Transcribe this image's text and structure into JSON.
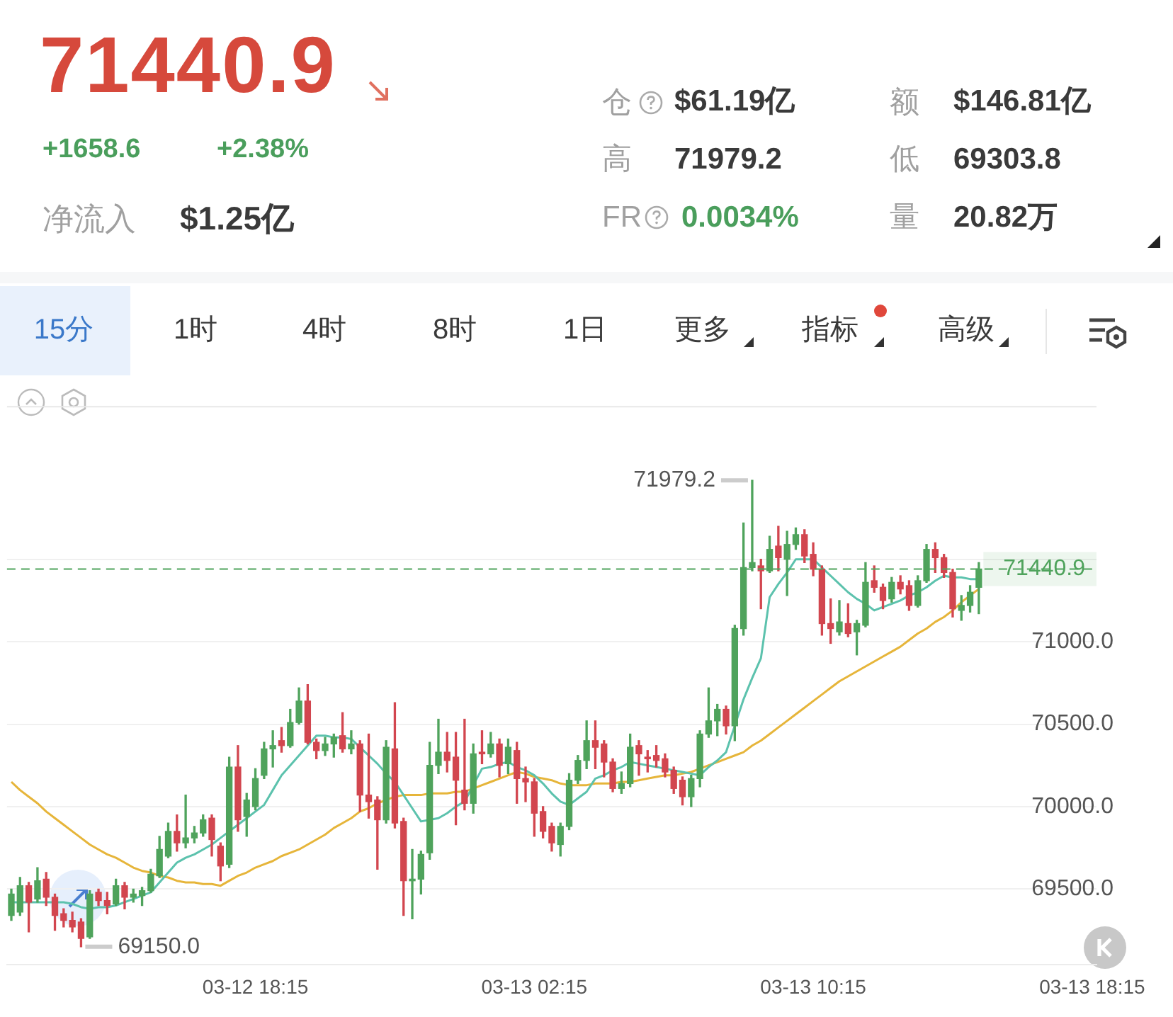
{
  "chart_data": {
    "type": "candlestick",
    "title": "71440.9",
    "categories": [
      null,
      null,
      null,
      null,
      null,
      null,
      null,
      null,
      null,
      null,
      null,
      null,
      null,
      null,
      null,
      null,
      null,
      null,
      null,
      null,
      null,
      null,
      null,
      null,
      null,
      null,
      null,
      null,
      "03-12 18:15",
      null,
      null,
      null,
      null,
      null,
      null,
      null,
      null,
      null,
      null,
      null,
      null,
      null,
      null,
      null,
      null,
      null,
      null,
      null,
      null,
      null,
      null,
      null,
      null,
      null,
      null,
      null,
      null,
      null,
      null,
      null,
      "03-13 02:15",
      null,
      null,
      null,
      null,
      null,
      null,
      null,
      null,
      null,
      null,
      null,
      null,
      null,
      null,
      null,
      null,
      null,
      null,
      null,
      null,
      null,
      null,
      null,
      null,
      null,
      null,
      null,
      null,
      null,
      null,
      null,
      "03-13 10:15",
      null,
      null,
      null,
      null,
      null,
      null,
      null,
      null,
      null,
      null,
      null,
      null,
      null,
      null,
      null,
      null,
      null,
      null,
      null,
      null,
      null,
      null,
      null,
      null,
      null,
      null,
      null,
      null,
      null,
      null,
      null,
      "03-13 18:15"
    ],
    "ohlc": [
      [
        69340,
        69500,
        69310,
        69470
      ],
      [
        69360,
        69570,
        69340,
        69520
      ],
      [
        69520,
        69540,
        69240,
        69420
      ],
      [
        69440,
        69630,
        69420,
        69550
      ],
      [
        69560,
        69600,
        69400,
        69450
      ],
      [
        69450,
        69470,
        69250,
        69340
      ],
      [
        69350,
        69380,
        69270,
        69310
      ],
      [
        69310,
        69360,
        69240,
        69270
      ],
      [
        69300,
        69320,
        69150,
        69200
      ],
      [
        69210,
        69490,
        69200,
        69470
      ],
      [
        69480,
        69500,
        69400,
        69430
      ],
      [
        69430,
        69480,
        69350,
        69400
      ],
      [
        69410,
        69560,
        69400,
        69520
      ],
      [
        69520,
        69540,
        69380,
        69450
      ],
      [
        69450,
        69500,
        69420,
        69470
      ],
      [
        69460,
        69510,
        69400,
        69490
      ],
      [
        69490,
        69620,
        69480,
        69590
      ],
      [
        69580,
        69820,
        69570,
        69740
      ],
      [
        69700,
        69900,
        69690,
        69850
      ],
      [
        69850,
        69950,
        69730,
        69780
      ],
      [
        69780,
        70070,
        69750,
        69810
      ],
      [
        69810,
        69880,
        69780,
        69840
      ],
      [
        69840,
        69950,
        69820,
        69920
      ],
      [
        69930,
        69950,
        69700,
        69800
      ],
      [
        69760,
        69780,
        69550,
        69640
      ],
      [
        69650,
        70300,
        69630,
        70240
      ],
      [
        70240,
        70370,
        69850,
        69920
      ],
      [
        69940,
        70080,
        69820,
        70040
      ],
      [
        70000,
        70230,
        69980,
        70170
      ],
      [
        70190,
        70390,
        70170,
        70350
      ],
      [
        70350,
        70460,
        70240,
        70370
      ],
      [
        70400,
        70480,
        70330,
        70370
      ],
      [
        70370,
        70590,
        70360,
        70510
      ],
      [
        70510,
        70720,
        70500,
        70640
      ],
      [
        70640,
        70740,
        70380,
        70390
      ],
      [
        70390,
        70410,
        70290,
        70340
      ],
      [
        70340,
        70420,
        70310,
        70380
      ],
      [
        70380,
        70440,
        70300,
        70420
      ],
      [
        70430,
        70570,
        70330,
        70350
      ],
      [
        70350,
        70460,
        70320,
        70380
      ],
      [
        70380,
        70400,
        69970,
        70070
      ],
      [
        70070,
        70440,
        69930,
        70030
      ],
      [
        70040,
        70060,
        69620,
        69920
      ],
      [
        69920,
        70400,
        69900,
        70360
      ],
      [
        70350,
        70630,
        69870,
        69900
      ],
      [
        69910,
        69930,
        69340,
        69550
      ],
      [
        69550,
        69740,
        69320,
        69560
      ],
      [
        69560,
        69730,
        69470,
        69710
      ],
      [
        69720,
        70390,
        69680,
        70250
      ],
      [
        70250,
        70530,
        70200,
        70330
      ],
      [
        70330,
        70450,
        70210,
        70280
      ],
      [
        70300,
        70450,
        69890,
        70160
      ],
      [
        70100,
        70530,
        69980,
        70020
      ],
      [
        70020,
        70380,
        69960,
        70320
      ],
      [
        70330,
        70460,
        70260,
        70320
      ],
      [
        70320,
        70450,
        70300,
        70380
      ],
      [
        70380,
        70410,
        70180,
        70250
      ],
      [
        70260,
        70410,
        70200,
        70360
      ],
      [
        70340,
        70390,
        70020,
        70170
      ],
      [
        70170,
        70240,
        70030,
        70150
      ],
      [
        70150,
        70170,
        69820,
        69960
      ],
      [
        69970,
        70000,
        69810,
        69850
      ],
      [
        69880,
        69900,
        69730,
        69780
      ],
      [
        69770,
        69900,
        69700,
        69880
      ],
      [
        69880,
        70200,
        69860,
        70160
      ],
      [
        70160,
        70310,
        70140,
        70280
      ],
      [
        70280,
        70520,
        70230,
        70400
      ],
      [
        70400,
        70520,
        70230,
        70360
      ],
      [
        70380,
        70400,
        70180,
        70270
      ],
      [
        70270,
        70290,
        70090,
        70110
      ],
      [
        70110,
        70210,
        70080,
        70140
      ],
      [
        70140,
        70440,
        70120,
        70360
      ],
      [
        70370,
        70400,
        70190,
        70320
      ],
      [
        70300,
        70340,
        70210,
        70290
      ],
      [
        70310,
        70370,
        70240,
        70280
      ],
      [
        70290,
        70320,
        70180,
        70210
      ],
      [
        70220,
        70240,
        70080,
        70110
      ],
      [
        70160,
        70180,
        70010,
        70060
      ],
      [
        70060,
        70190,
        70000,
        70170
      ],
      [
        70170,
        70460,
        70120,
        70440
      ],
      [
        70440,
        70720,
        70420,
        70520
      ],
      [
        70520,
        70620,
        70430,
        70590
      ],
      [
        70590,
        70610,
        70440,
        70490
      ],
      [
        70490,
        71100,
        70400,
        71080
      ],
      [
        71080,
        71720,
        71040,
        71450
      ],
      [
        71450,
        71979.2,
        71430,
        71480
      ],
      [
        71460,
        71500,
        71200,
        71430
      ],
      [
        71430,
        71640,
        71420,
        71560
      ],
      [
        71580,
        71700,
        71430,
        71510
      ],
      [
        71500,
        71670,
        71280,
        71590
      ],
      [
        71590,
        71690,
        71560,
        71650
      ],
      [
        71650,
        71680,
        71480,
        71520
      ],
      [
        71530,
        71600,
        71400,
        71440
      ],
      [
        71440,
        71460,
        71040,
        71110
      ],
      [
        71110,
        71260,
        70990,
        71080
      ],
      [
        71060,
        71250,
        71040,
        71120
      ],
      [
        71110,
        71230,
        71030,
        71050
      ],
      [
        71060,
        71130,
        70920,
        71110
      ],
      [
        71100,
        71480,
        71090,
        71360
      ],
      [
        71370,
        71460,
        71300,
        71330
      ],
      [
        71330,
        71350,
        71200,
        71250
      ],
      [
        71260,
        71390,
        71240,
        71360
      ],
      [
        71360,
        71400,
        71290,
        71320
      ],
      [
        71340,
        71370,
        71190,
        71220
      ],
      [
        71220,
        71400,
        71210,
        71370
      ],
      [
        71370,
        71590,
        71360,
        71560
      ],
      [
        71560,
        71600,
        71420,
        71510
      ],
      [
        71510,
        71530,
        71390,
        71420
      ],
      [
        71420,
        71440,
        71150,
        71200
      ],
      [
        71190,
        71280,
        71130,
        71220
      ],
      [
        71220,
        71340,
        71180,
        71300
      ],
      [
        71330,
        71480,
        71170,
        71440.9
      ],
      null,
      null,
      null,
      null,
      null,
      null,
      null,
      null,
      null,
      null,
      null,
      null,
      null
    ],
    "series": [
      {
        "type": "line",
        "color": "#5cc2ad",
        "values": [
          69420,
          69420,
          69420,
          69420,
          69420,
          69420,
          69420,
          69410,
          69390,
          69380,
          69390,
          69390,
          69400,
          69420,
          69440,
          69460,
          69480,
          69540,
          69600,
          69660,
          69690,
          69710,
          69740,
          69770,
          69810,
          69850,
          69890,
          69930,
          69970,
          70010,
          70100,
          70190,
          70250,
          70310,
          70370,
          70430,
          70430,
          70420,
          70420,
          70410,
          70360,
          70310,
          70260,
          70200,
          70150,
          70070,
          69990,
          69910,
          69920,
          69930,
          69960,
          70000,
          70030,
          70130,
          70230,
          70240,
          70260,
          70270,
          70240,
          70220,
          70190,
          70140,
          70080,
          70030,
          70010,
          70050,
          70090,
          70170,
          70190,
          70220,
          70240,
          70270,
          70260,
          70250,
          70240,
          70230,
          70220,
          70210,
          70200,
          70190,
          70240,
          70280,
          70330,
          70490,
          70650,
          70780,
          70900,
          71270,
          71350,
          71420,
          71500,
          71500,
          71500,
          71450,
          71400,
          71350,
          71300,
          71260,
          71230,
          71190,
          71210,
          71230,
          71250,
          71280,
          71300,
          71330,
          71370,
          71400,
          71390,
          71390,
          71380,
          71380,
          null,
          null,
          null,
          null,
          null,
          null,
          null,
          null,
          null,
          null,
          null,
          null,
          null
        ]
      },
      {
        "type": "line",
        "color": "#e6b53a",
        "values": [
          70150,
          70100,
          70060,
          70020,
          69970,
          69930,
          69890,
          69850,
          69810,
          69770,
          69740,
          69710,
          69690,
          69660,
          69630,
          69610,
          69600,
          69580,
          69570,
          69550,
          69540,
          69540,
          69530,
          69530,
          69520,
          69550,
          69580,
          69600,
          69630,
          69650,
          69670,
          69700,
          69720,
          69740,
          69770,
          69800,
          69830,
          69870,
          69900,
          69930,
          69970,
          69990,
          70020,
          70040,
          70060,
          70070,
          70070,
          70070,
          70080,
          70080,
          70080,
          70090,
          70090,
          70110,
          70130,
          70150,
          70170,
          70190,
          70210,
          70200,
          70180,
          70170,
          70160,
          70140,
          70130,
          70130,
          70130,
          70140,
          70140,
          70140,
          70150,
          70150,
          70160,
          70170,
          70180,
          70190,
          70190,
          70200,
          70210,
          70230,
          70250,
          70270,
          70290,
          70310,
          70330,
          70370,
          70400,
          70440,
          70480,
          70520,
          70560,
          70600,
          70640,
          70680,
          70720,
          70760,
          70790,
          70820,
          70850,
          70880,
          70910,
          70940,
          70970,
          71010,
          71050,
          71080,
          71120,
          71150,
          71190,
          71240,
          71280,
          71320,
          null,
          null,
          null,
          null,
          null,
          null,
          null,
          null,
          null,
          null,
          null,
          null,
          null
        ]
      }
    ],
    "ylim": [
      69040,
      72430
    ],
    "yticks": [
      {
        "value": 69500,
        "label": "69500.0"
      },
      {
        "value": 70000,
        "label": "70000.0"
      },
      {
        "value": 70500,
        "label": "70500.0"
      },
      {
        "value": 71000,
        "label": "71000.0"
      },
      {
        "value": 71500,
        "label": null
      }
    ],
    "grid": "y",
    "marker": "none",
    "ref_lines": [
      {
        "axis": "y",
        "value": 71440.9,
        "label": "71440.9",
        "color": "#4fa35c",
        "line_style": "dashed"
      }
    ],
    "annotations": [
      "+1658.6",
      "+2.38%",
      "净流入",
      "$1.25亿",
      "仓",
      "$61.19亿",
      "额",
      "$146.81亿",
      "高",
      "71979.2",
      "低",
      "69303.8",
      "FR",
      "0.0034%",
      "量",
      "20.82万",
      "15分",
      "1时",
      "4时",
      "8时",
      "1日",
      "更多",
      "指标",
      "高级",
      "71979.2",
      "69150.0"
    ]
  }
}
